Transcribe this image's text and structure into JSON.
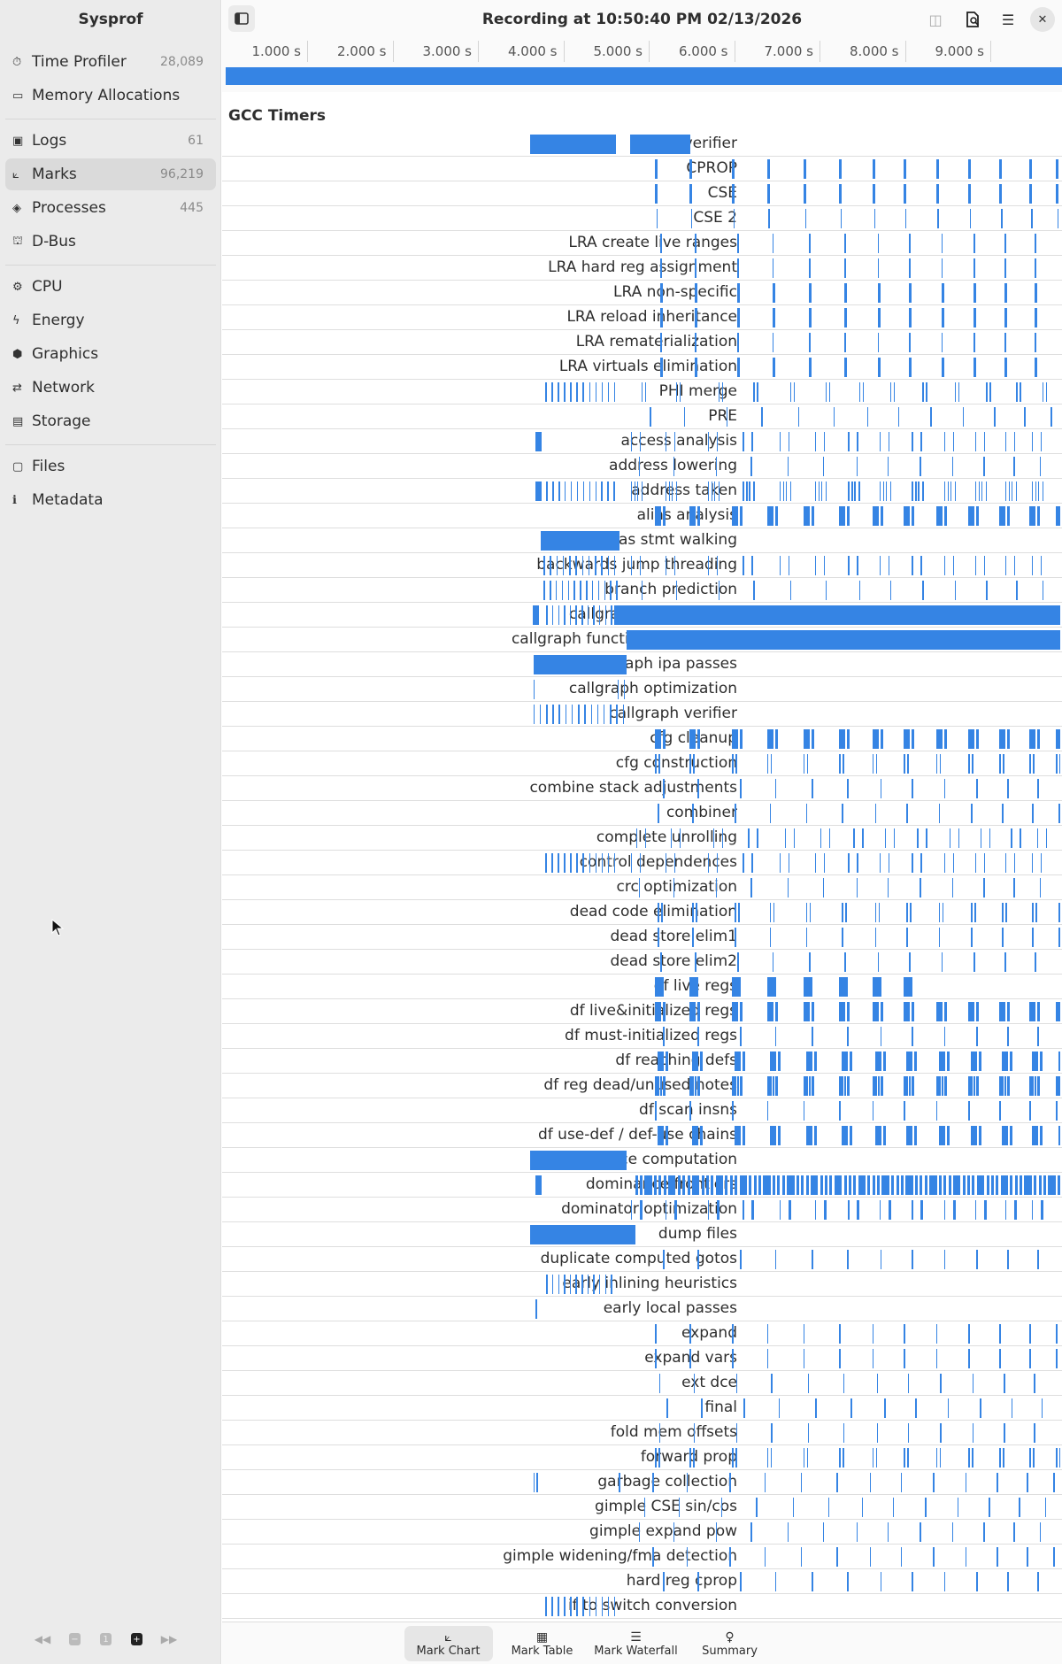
{
  "app_title": "Sysprof",
  "window_title": "Recording at 10:50:40 PM 02/13/2026",
  "sidebar": {
    "groups": [
      [
        {
          "label": "Time Profiler",
          "count": "28,089",
          "icon": "⏱",
          "name": "stopwatch-icon"
        },
        {
          "label": "Memory Allocations",
          "count": "",
          "icon": "▭",
          "name": "memory-icon"
        }
      ],
      [
        {
          "label": "Logs",
          "count": "61",
          "icon": "▣",
          "name": "logs-icon"
        },
        {
          "label": "Marks",
          "count": "96,219",
          "icon": "⟀",
          "name": "marks-icon",
          "selected": true
        },
        {
          "label": "Processes",
          "count": "445",
          "icon": "◈",
          "name": "processes-icon"
        },
        {
          "label": "D-Bus",
          "count": "",
          "icon": "⛫",
          "name": "dbus-icon"
        }
      ],
      [
        {
          "label": "CPU",
          "count": "",
          "icon": "⚙",
          "name": "cpu-icon"
        },
        {
          "label": "Energy",
          "count": "",
          "icon": "ϟ",
          "name": "energy-icon"
        },
        {
          "label": "Graphics",
          "count": "",
          "icon": "⬢",
          "name": "graphics-icon"
        },
        {
          "label": "Network",
          "count": "",
          "icon": "⇄",
          "name": "network-icon"
        },
        {
          "label": "Storage",
          "count": "",
          "icon": "▤",
          "name": "storage-icon"
        }
      ],
      [
        {
          "label": "Files",
          "count": "",
          "icon": "▢",
          "name": "folder-icon"
        },
        {
          "label": "Metadata",
          "count": "",
          "icon": "ℹ",
          "name": "info-icon"
        }
      ]
    ],
    "pager": {
      "page": "1"
    }
  },
  "ruler": [
    "1.000 s",
    "2.000 s",
    "3.000 s",
    "4.000 s",
    "5.000 s",
    "6.000 s",
    "7.000 s",
    "8.000 s",
    "9.000 s"
  ],
  "group_title": "GCC Timers",
  "duration_s": 9.85,
  "cycle_s": [
    2.32,
    2.96,
    3.75,
    4.4,
    5.08,
    5.74,
    6.36,
    6.94,
    7.54,
    8.14,
    8.72,
    9.28,
    9.77
  ],
  "rows": [
    {
      "label": "CFG verifier",
      "blocks": [
        [
          0.0,
          1.6
        ],
        [
          1.86,
          2.98
        ]
      ]
    },
    {
      "label": "CPROP",
      "periodic": {
        "offset": 0,
        "style": "bold"
      }
    },
    {
      "label": "CSE",
      "periodic": {
        "offset": 0,
        "style": "bold"
      }
    },
    {
      "label": "CSE 2",
      "periodic": {
        "offset": 0.03,
        "style": "thin"
      }
    },
    {
      "label": "LRA create live ranges",
      "periodic": {
        "offset": 0.1,
        "style": "thin"
      }
    },
    {
      "label": "LRA hard reg assignment",
      "periodic": {
        "offset": 0.1,
        "style": "thin"
      }
    },
    {
      "label": "LRA non-specific",
      "periodic": {
        "offset": 0.1,
        "style": "bold"
      }
    },
    {
      "label": "LRA reload inheritance",
      "periodic": {
        "offset": 0.1,
        "style": "bold"
      }
    },
    {
      "label": "LRA rematerialization",
      "periodic": {
        "offset": 0.1,
        "style": "thin"
      }
    },
    {
      "label": "LRA virtuals elimination",
      "periodic": {
        "offset": 0.1,
        "style": "bold"
      }
    },
    {
      "label": "PHI merge",
      "early": {
        "from": 0.28,
        "to": 1.56,
        "count": 12
      },
      "periodic": {
        "offset": -0.25,
        "style": "pair"
      }
    },
    {
      "label": "PRE",
      "periodic": {
        "offset": -0.1,
        "style": "thin"
      }
    },
    {
      "label": "access analysis",
      "blocks": [
        [
          0.1,
          0.22
        ]
      ],
      "periodic": {
        "offset": -0.45,
        "style": "wide"
      }
    },
    {
      "label": "address lowering",
      "periodic": {
        "offset": -0.3,
        "style": "thin"
      }
    },
    {
      "label": "address taken",
      "blocks": [
        [
          0.1,
          0.22
        ]
      ],
      "early": {
        "from": 0.3,
        "to": 1.55,
        "count": 12
      },
      "periodic": {
        "offset": -0.45,
        "style": "cluster"
      }
    },
    {
      "label": "alias analysis",
      "periodic": {
        "offset": 0,
        "style": "boldpair"
      }
    },
    {
      "label": "alias stmt walking",
      "early": {
        "from": 0.2,
        "to": 1.6,
        "count": 34
      }
    },
    {
      "label": "backwards jump threading",
      "early": {
        "from": 0.25,
        "to": 1.56,
        "count": 12
      },
      "periodic": {
        "offset": -0.45,
        "style": "wide"
      }
    },
    {
      "label": "branch prediction",
      "early": {
        "from": 0.25,
        "to": 1.6,
        "count": 13
      },
      "periodic": {
        "offset": -0.25,
        "style": "thin"
      }
    },
    {
      "label": "callgraph construction",
      "blocks": [
        [
          0.05,
          0.17
        ],
        [
          1.57,
          9.85
        ]
      ],
      "early": {
        "from": 0.3,
        "to": 1.5,
        "count": 12
      }
    },
    {
      "label": "callgraph functions expansion",
      "blocks": [
        [
          1.8,
          9.85
        ]
      ]
    },
    {
      "label": "callgraph ipa passes",
      "blocks": [
        [
          0.06,
          1.8
        ]
      ]
    },
    {
      "label": "callgraph optimization",
      "ticks": [
        0.06,
        1.62,
        1.74
      ]
    },
    {
      "label": "callgraph verifier",
      "early": {
        "from": 0.06,
        "to": 1.72,
        "count": 15
      }
    },
    {
      "label": "cfg cleanup",
      "periodic": {
        "offset": 0,
        "style": "boldpair"
      }
    },
    {
      "label": "cfg construction",
      "periodic": {
        "offset": 0,
        "style": "pair"
      }
    },
    {
      "label": "combine stack adjustments",
      "periodic": {
        "offset": 0.15,
        "style": "thin"
      }
    },
    {
      "label": "combiner",
      "periodic": {
        "offset": 0.05,
        "style": "thin"
      }
    },
    {
      "label": "complete unrolling",
      "periodic": {
        "offset": -0.35,
        "style": "wide"
      }
    },
    {
      "label": "control dependences",
      "early": {
        "from": 0.28,
        "to": 1.56,
        "count": 12
      },
      "periodic": {
        "offset": -0.45,
        "style": "wide"
      }
    },
    {
      "label": "crc optimization",
      "periodic": {
        "offset": -0.3,
        "style": "thin"
      }
    },
    {
      "label": "dead code elimination",
      "periodic": {
        "offset": 0.05,
        "style": "pair"
      }
    },
    {
      "label": "dead store elim1",
      "periodic": {
        "offset": 0.05,
        "style": "thin"
      }
    },
    {
      "label": "dead store elim2",
      "periodic": {
        "offset": 0.1,
        "style": "thin"
      }
    },
    {
      "label": "df live regs",
      "periodic": {
        "offset": 0,
        "style": "block",
        "limit": 8
      }
    },
    {
      "label": "df live&initialized regs",
      "periodic": {
        "offset": 0,
        "style": "boldpair"
      }
    },
    {
      "label": "df must-initialized regs",
      "periodic": {
        "offset": 0.15,
        "style": "thin"
      }
    },
    {
      "label": "df reaching defs",
      "periodic": {
        "offset": 0.05,
        "style": "boldpair"
      }
    },
    {
      "label": "df reg dead/unused notes",
      "periodic": {
        "offset": 0,
        "style": "boldcluster"
      }
    },
    {
      "label": "df scan insns",
      "periodic": {
        "offset": 0,
        "style": "thin"
      }
    },
    {
      "label": "df use-def / def-use chains",
      "periodic": {
        "offset": 0.05,
        "style": "boldpair"
      }
    },
    {
      "label": "dominance computation",
      "blocks": [
        [
          0.0,
          1.8
        ]
      ]
    },
    {
      "label": "dominance frontiers",
      "blocks": [
        [
          0.1,
          0.22
        ]
      ],
      "early": {
        "from": 1.95,
        "to": 9.8,
        "count": 90
      }
    },
    {
      "label": "dominator optimization",
      "periodic": {
        "offset": -0.45,
        "style": "widebold"
      }
    },
    {
      "label": "dump files",
      "blocks": [
        [
          0.0,
          1.95
        ]
      ]
    },
    {
      "label": "duplicate computed gotos",
      "periodic": {
        "offset": 0.15,
        "style": "thin"
      }
    },
    {
      "label": "early inlining heuristics",
      "early": {
        "from": 0.3,
        "to": 1.5,
        "count": 12
      }
    },
    {
      "label": "early local passes",
      "ticks": [
        0.1
      ]
    },
    {
      "label": "expand",
      "periodic": {
        "offset": 0,
        "style": "thin"
      }
    },
    {
      "label": "expand vars",
      "periodic": {
        "offset": 0,
        "style": "thin"
      }
    },
    {
      "label": "ext dce",
      "periodic": {
        "offset": 0.08,
        "style": "thin"
      }
    },
    {
      "label": "final",
      "periodic": {
        "offset": 0.22,
        "style": "thin"
      }
    },
    {
      "label": "fold mem offsets",
      "periodic": {
        "offset": 0.08,
        "style": "thin"
      }
    },
    {
      "label": "forward prop",
      "periodic": {
        "offset": 0,
        "style": "pair"
      }
    },
    {
      "label": "garbage collection",
      "ticks": [
        0.06,
        0.12,
        1.65
      ],
      "periodic": {
        "offset": -0.05,
        "style": "thin"
      }
    },
    {
      "label": "gimple CSE sin/cos",
      "periodic": {
        "offset": -0.2,
        "style": "thin"
      }
    },
    {
      "label": "gimple expand pow",
      "periodic": {
        "offset": -0.3,
        "style": "thin"
      }
    },
    {
      "label": "gimple widening/fma detection",
      "periodic": {
        "offset": -0.05,
        "style": "thin"
      }
    },
    {
      "label": "hard reg cprop",
      "periodic": {
        "offset": 0.15,
        "style": "thin"
      }
    },
    {
      "label": "if to switch conversion",
      "early": {
        "from": 0.28,
        "to": 1.56,
        "count": 12
      }
    }
  ],
  "bottom_tabs": [
    {
      "label": "Mark Chart",
      "icon": "⟀",
      "selected": true
    },
    {
      "label": "Mark Table",
      "icon": "▦"
    },
    {
      "label": "Mark Waterfall",
      "icon": "☰"
    },
    {
      "label": "Summary",
      "icon": "♀"
    }
  ],
  "colors": {
    "accent": "#3584e4",
    "sidebar": "#ebebeb"
  }
}
